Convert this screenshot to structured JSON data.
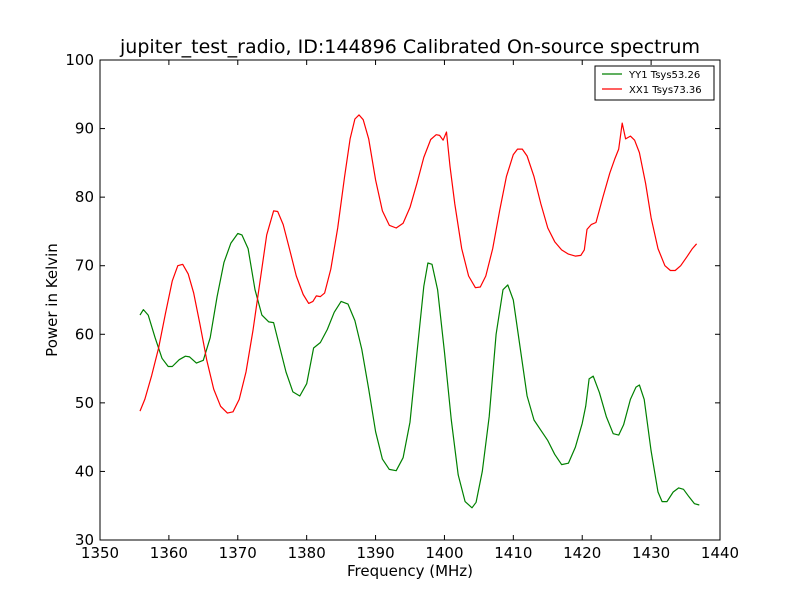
{
  "chart_data": {
    "type": "line",
    "title": "jupiter_test_radio, ID:144896 Calibrated On-source spectrum",
    "xlabel": "Frequency (MHz)",
    "ylabel": "Power in Kelvin",
    "xlim": [
      1350,
      1440
    ],
    "ylim": [
      30,
      100
    ],
    "xticks": [
      1350,
      1360,
      1370,
      1380,
      1390,
      1400,
      1410,
      1420,
      1430,
      1440
    ],
    "yticks": [
      30,
      40,
      50,
      60,
      70,
      80,
      90,
      100
    ],
    "grid": false,
    "legend_position": "top-right",
    "series": [
      {
        "name": "YY1 Tsys53.26",
        "color": "#008000",
        "points": [
          [
            1355.8,
            62.8
          ],
          [
            1356.3,
            63.6
          ],
          [
            1357.0,
            62.8
          ],
          [
            1358.0,
            59.5
          ],
          [
            1359.0,
            56.5
          ],
          [
            1359.9,
            55.3
          ],
          [
            1360.5,
            55.3
          ],
          [
            1361.5,
            56.3
          ],
          [
            1362.4,
            56.8
          ],
          [
            1363.0,
            56.7
          ],
          [
            1364.0,
            55.8
          ],
          [
            1365.0,
            56.2
          ],
          [
            1366.0,
            59.5
          ],
          [
            1367.0,
            65.5
          ],
          [
            1368.0,
            70.5
          ],
          [
            1369.0,
            73.3
          ],
          [
            1370.0,
            74.7
          ],
          [
            1370.6,
            74.5
          ],
          [
            1371.5,
            72.5
          ],
          [
            1372.5,
            66.5
          ],
          [
            1373.5,
            62.8
          ],
          [
            1374.5,
            61.8
          ],
          [
            1375.2,
            61.7
          ],
          [
            1376.0,
            58.5
          ],
          [
            1377.0,
            54.5
          ],
          [
            1378.0,
            51.6
          ],
          [
            1379.0,
            51.0
          ],
          [
            1380.0,
            52.8
          ],
          [
            1381.0,
            58.0
          ],
          [
            1382.0,
            58.8
          ],
          [
            1383.0,
            60.7
          ],
          [
            1384.0,
            63.2
          ],
          [
            1385.0,
            64.8
          ],
          [
            1386.0,
            64.4
          ],
          [
            1387.0,
            62.0
          ],
          [
            1388.0,
            57.8
          ],
          [
            1389.0,
            52.0
          ],
          [
            1390.0,
            45.8
          ],
          [
            1391.0,
            41.8
          ],
          [
            1392.0,
            40.3
          ],
          [
            1393.0,
            40.1
          ],
          [
            1394.0,
            42.0
          ],
          [
            1395.0,
            47.2
          ],
          [
            1396.0,
            57.2
          ],
          [
            1397.0,
            67.0
          ],
          [
            1397.6,
            70.4
          ],
          [
            1398.2,
            70.2
          ],
          [
            1399.0,
            66.5
          ],
          [
            1400.0,
            57.5
          ],
          [
            1401.0,
            47.5
          ],
          [
            1402.0,
            39.5
          ],
          [
            1403.0,
            35.6
          ],
          [
            1404.0,
            34.7
          ],
          [
            1404.6,
            35.5
          ],
          [
            1405.5,
            40.0
          ],
          [
            1406.5,
            48.0
          ],
          [
            1407.5,
            60.0
          ],
          [
            1408.5,
            66.5
          ],
          [
            1409.2,
            67.2
          ],
          [
            1410.0,
            65.0
          ],
          [
            1411.0,
            58.0
          ],
          [
            1412.0,
            51.0
          ],
          [
            1413.0,
            47.5
          ],
          [
            1414.0,
            46.0
          ],
          [
            1415.0,
            44.5
          ],
          [
            1416.0,
            42.5
          ],
          [
            1417.0,
            41.0
          ],
          [
            1418.0,
            41.2
          ],
          [
            1419.0,
            43.5
          ],
          [
            1420.0,
            47.0
          ],
          [
            1420.5,
            49.5
          ],
          [
            1421.0,
            53.5
          ],
          [
            1421.6,
            53.9
          ],
          [
            1422.5,
            51.5
          ],
          [
            1423.5,
            48.0
          ],
          [
            1424.5,
            45.5
          ],
          [
            1425.3,
            45.3
          ],
          [
            1426.0,
            46.8
          ],
          [
            1427.0,
            50.5
          ],
          [
            1427.8,
            52.3
          ],
          [
            1428.3,
            52.6
          ],
          [
            1429.0,
            50.5
          ],
          [
            1430.0,
            43.0
          ],
          [
            1431.0,
            37.0
          ],
          [
            1431.6,
            35.6
          ],
          [
            1432.3,
            35.6
          ],
          [
            1433.2,
            37.0
          ],
          [
            1434.0,
            37.6
          ],
          [
            1434.7,
            37.4
          ],
          [
            1435.5,
            36.3
          ],
          [
            1436.3,
            35.3
          ],
          [
            1437.0,
            35.1
          ]
        ]
      },
      {
        "name": "XX1 Tsys73.36",
        "color": "#ff0000",
        "points": [
          [
            1355.8,
            48.8
          ],
          [
            1356.5,
            50.5
          ],
          [
            1357.5,
            54.0
          ],
          [
            1358.5,
            58.0
          ],
          [
            1359.5,
            63.0
          ],
          [
            1360.5,
            67.8
          ],
          [
            1361.3,
            70.0
          ],
          [
            1362.0,
            70.2
          ],
          [
            1362.8,
            68.8
          ],
          [
            1363.6,
            66.0
          ],
          [
            1364.5,
            61.5
          ],
          [
            1365.5,
            56.2
          ],
          [
            1366.5,
            52.0
          ],
          [
            1367.5,
            49.5
          ],
          [
            1368.5,
            48.5
          ],
          [
            1369.3,
            48.7
          ],
          [
            1370.2,
            50.5
          ],
          [
            1371.2,
            54.5
          ],
          [
            1372.2,
            60.5
          ],
          [
            1373.2,
            67.5
          ],
          [
            1374.2,
            74.5
          ],
          [
            1375.2,
            78.0
          ],
          [
            1375.8,
            77.9
          ],
          [
            1376.6,
            76.0
          ],
          [
            1377.5,
            72.5
          ],
          [
            1378.5,
            68.5
          ],
          [
            1379.5,
            65.8
          ],
          [
            1380.3,
            64.5
          ],
          [
            1380.9,
            64.8
          ],
          [
            1381.4,
            65.6
          ],
          [
            1382.0,
            65.5
          ],
          [
            1382.6,
            66.0
          ],
          [
            1383.5,
            69.5
          ],
          [
            1384.5,
            75.5
          ],
          [
            1385.5,
            83.0
          ],
          [
            1386.3,
            88.5
          ],
          [
            1387.0,
            91.4
          ],
          [
            1387.6,
            92.0
          ],
          [
            1388.2,
            91.3
          ],
          [
            1389.0,
            88.5
          ],
          [
            1390.0,
            82.5
          ],
          [
            1391.0,
            78.0
          ],
          [
            1392.0,
            75.9
          ],
          [
            1393.0,
            75.5
          ],
          [
            1394.0,
            76.2
          ],
          [
            1395.0,
            78.5
          ],
          [
            1396.0,
            82.0
          ],
          [
            1397.0,
            85.8
          ],
          [
            1398.0,
            88.4
          ],
          [
            1398.8,
            89.1
          ],
          [
            1399.3,
            89.0
          ],
          [
            1399.8,
            88.3
          ],
          [
            1400.3,
            89.5
          ],
          [
            1400.8,
            84.5
          ],
          [
            1401.5,
            79.0
          ],
          [
            1402.5,
            72.5
          ],
          [
            1403.5,
            68.5
          ],
          [
            1404.5,
            66.8
          ],
          [
            1405.2,
            66.9
          ],
          [
            1406.0,
            68.5
          ],
          [
            1407.0,
            72.5
          ],
          [
            1408.0,
            78.0
          ],
          [
            1409.0,
            83.0
          ],
          [
            1410.0,
            86.2
          ],
          [
            1410.6,
            87.0
          ],
          [
            1411.3,
            87.0
          ],
          [
            1412.0,
            86.0
          ],
          [
            1413.0,
            83.0
          ],
          [
            1414.0,
            79.0
          ],
          [
            1415.0,
            75.5
          ],
          [
            1416.0,
            73.5
          ],
          [
            1417.0,
            72.3
          ],
          [
            1418.0,
            71.7
          ],
          [
            1419.0,
            71.4
          ],
          [
            1419.8,
            71.5
          ],
          [
            1420.3,
            72.3
          ],
          [
            1420.7,
            75.3
          ],
          [
            1421.3,
            76.0
          ],
          [
            1422.0,
            76.3
          ],
          [
            1423.0,
            80.0
          ],
          [
            1424.0,
            83.5
          ],
          [
            1424.7,
            85.5
          ],
          [
            1425.3,
            87.0
          ],
          [
            1425.8,
            90.8
          ],
          [
            1426.3,
            88.5
          ],
          [
            1427.0,
            88.9
          ],
          [
            1427.6,
            88.3
          ],
          [
            1428.3,
            86.5
          ],
          [
            1429.2,
            82.0
          ],
          [
            1430.0,
            77.0
          ],
          [
            1431.0,
            72.5
          ],
          [
            1432.0,
            70.0
          ],
          [
            1432.8,
            69.3
          ],
          [
            1433.5,
            69.3
          ],
          [
            1434.3,
            70.0
          ],
          [
            1435.2,
            71.3
          ],
          [
            1436.0,
            72.5
          ],
          [
            1436.6,
            73.2
          ]
        ]
      }
    ]
  }
}
